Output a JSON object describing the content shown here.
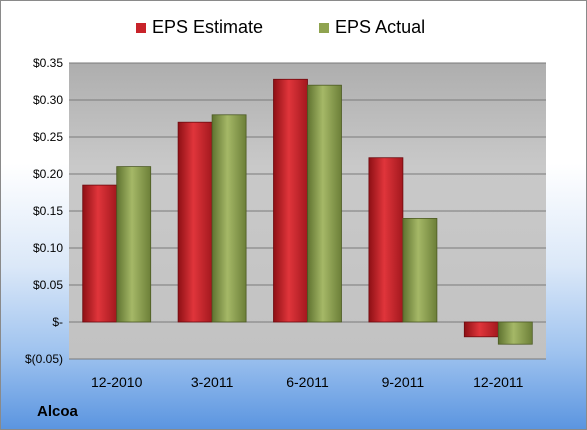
{
  "legend": {
    "estimate_label": "EPS Estimate",
    "actual_label": "EPS Actual"
  },
  "company": "Alcoa",
  "colors": {
    "estimate": "#c8232a",
    "actual": "#8fa34f"
  },
  "chart_data": {
    "type": "bar",
    "categories": [
      "12-2010",
      "3-2011",
      "6-2011",
      "9-2011",
      "12-2011"
    ],
    "series": [
      {
        "name": "EPS Estimate",
        "values": [
          0.185,
          0.27,
          0.328,
          0.222,
          -0.02
        ]
      },
      {
        "name": "EPS Actual",
        "values": [
          0.21,
          0.28,
          0.32,
          0.14,
          -0.03
        ]
      }
    ],
    "yticks": [
      {
        "value": 0.35,
        "label": "$0.35"
      },
      {
        "value": 0.3,
        "label": "$0.30"
      },
      {
        "value": 0.25,
        "label": "$0.25"
      },
      {
        "value": 0.2,
        "label": "$0.20"
      },
      {
        "value": 0.15,
        "label": "$0.15"
      },
      {
        "value": 0.1,
        "label": "$0.10"
      },
      {
        "value": 0.05,
        "label": "$0.05"
      },
      {
        "value": 0.0,
        "label": "$-"
      },
      {
        "value": -0.05,
        "label": "$(0.05)"
      }
    ],
    "ylim": [
      -0.05,
      0.35
    ],
    "grid": true,
    "legend_position": "top"
  }
}
